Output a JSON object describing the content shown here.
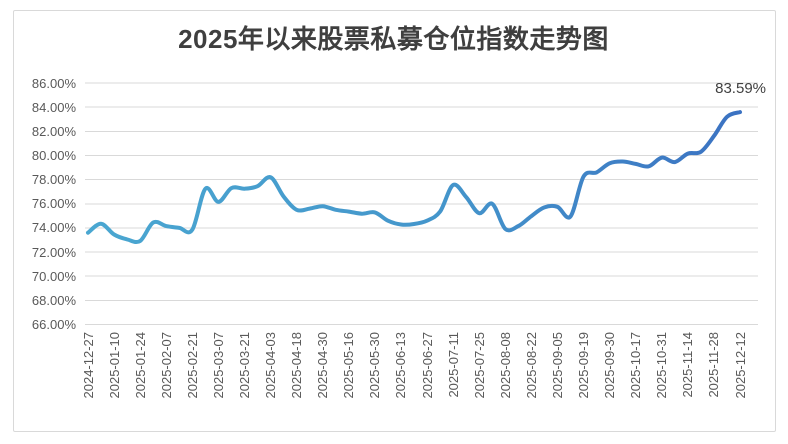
{
  "chart": {
    "title": "2025年以来股票私募仓位指数走势图",
    "end_label": "83.59%"
  },
  "chart_data": {
    "type": "line",
    "title": "2025年以来股票私募仓位指数走势图",
    "smooth": true,
    "grid": true,
    "legend": "none",
    "ylim": [
      66,
      86
    ],
    "ytick_step": 2,
    "yticks": [
      "86.00%",
      "84.00%",
      "82.00%",
      "80.00%",
      "78.00%",
      "76.00%",
      "74.00%",
      "72.00%",
      "70.00%",
      "68.00%",
      "66.00%"
    ],
    "categories": [
      "2024-12-27",
      "2025-01-10",
      "2025-01-24",
      "2025-02-07",
      "2025-02-21",
      "2025-03-07",
      "2025-03-21",
      "2025-04-03",
      "2025-04-18",
      "2025-04-30",
      "2025-05-16",
      "2025-05-30",
      "2025-06-13",
      "2025-06-27",
      "2025-07-11",
      "2025-07-25",
      "2025-08-08",
      "2025-08-22",
      "2025-09-05",
      "2025-09-19",
      "2025-09-30",
      "2025-10-17",
      "2025-10-31",
      "2025-11-14",
      "2025-11-28",
      "2025-12-12"
    ],
    "points_per_label": 2,
    "values": [
      73.6,
      74.35,
      73.45,
      73.05,
      72.92,
      74.45,
      74.15,
      74.0,
      73.85,
      77.25,
      76.15,
      77.3,
      77.25,
      77.45,
      78.2,
      76.6,
      75.5,
      75.6,
      75.8,
      75.5,
      75.35,
      75.18,
      75.28,
      74.6,
      74.28,
      74.32,
      74.6,
      75.35,
      77.55,
      76.55,
      75.22,
      76.0,
      73.92,
      74.15,
      74.98,
      75.7,
      75.75,
      74.95,
      78.25,
      78.6,
      79.35,
      79.5,
      79.3,
      79.1,
      79.82,
      79.45,
      80.15,
      80.3,
      81.6,
      83.2,
      83.59
    ],
    "last_point_label": "83.59%",
    "colors": {
      "line_gradient": [
        "#4aa7d1",
        "#4495cb",
        "#3b72c2"
      ],
      "gridline": "#d9d9d9",
      "frame_border": "#d9d9d9",
      "title_text": "#3f3f3f",
      "axis_text": "#595959",
      "end_label_text": "#404040",
      "background": "#ffffff"
    }
  }
}
